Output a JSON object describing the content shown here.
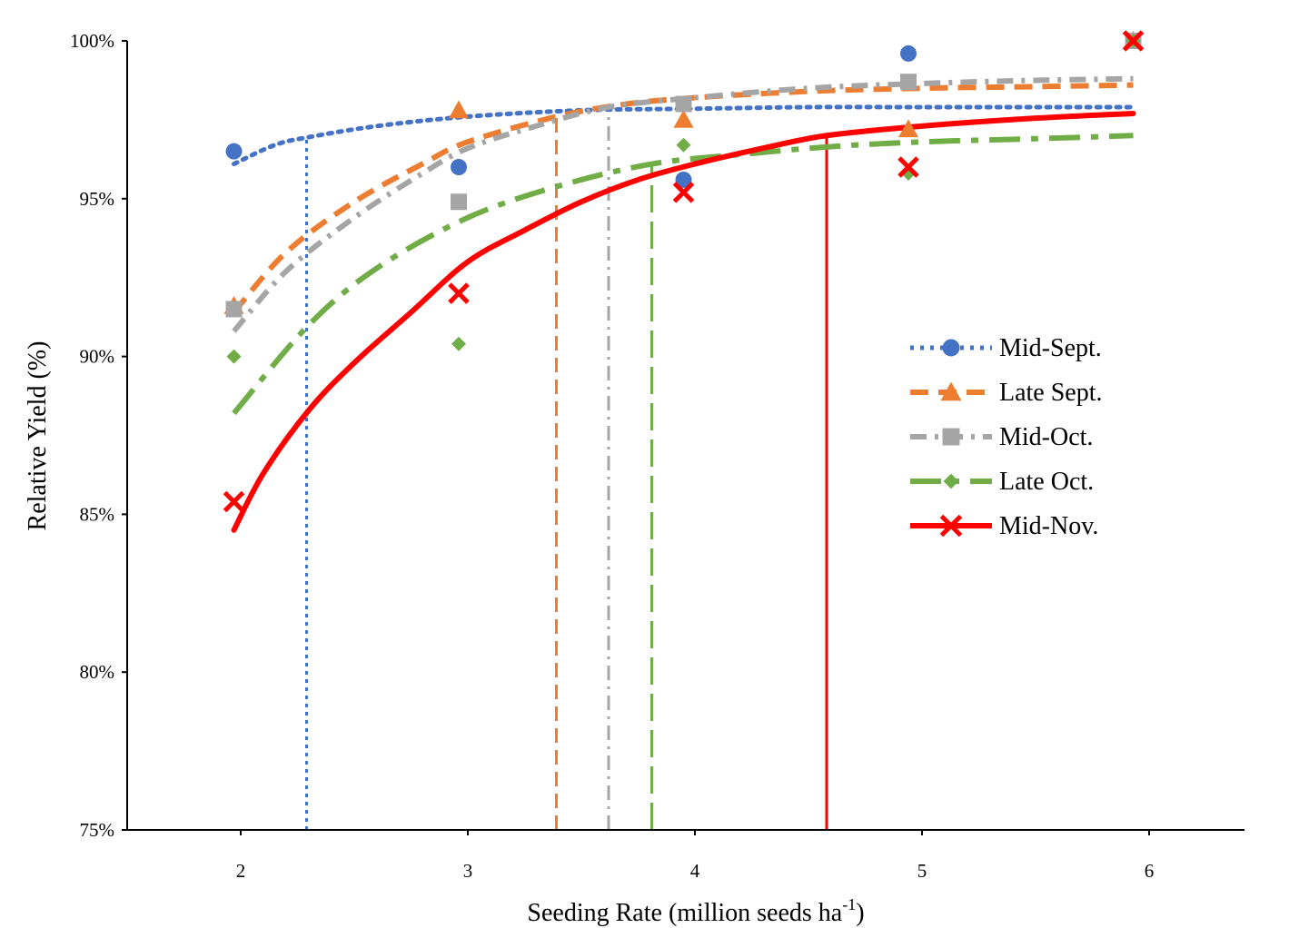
{
  "chart_data": {
    "type": "scatter",
    "title": "",
    "xlabel": "Seeding Rate (million seeds ha",
    "xlabel_superscript": "-1",
    "xlabel_suffix": ")",
    "ylabel": "Relative Yield (%)",
    "xlim": [
      1.5,
      6.42
    ],
    "ylim": [
      75,
      100
    ],
    "x_ticks": [
      2,
      3,
      4,
      5,
      6
    ],
    "x_tick_labels": [
      "2",
      "3",
      "4",
      "5",
      "6"
    ],
    "y_ticks": [
      75,
      80,
      85,
      90,
      95,
      100
    ],
    "y_tick_labels": [
      "75%",
      "80%",
      "85%",
      "90%",
      "95%",
      "100%"
    ],
    "grid": false,
    "legend_position": "right",
    "series": [
      {
        "name": "Mid-Sept.",
        "color": "#4472C4",
        "marker": "circle",
        "line_style": "dotted",
        "x": [
          1.97,
          2.96,
          3.95,
          4.94,
          5.93
        ],
        "values": [
          96.5,
          96.0,
          95.6,
          99.6,
          100.0
        ],
        "trend": [
          [
            1.97,
            96.1
          ],
          [
            2.15,
            96.7
          ],
          [
            2.3,
            96.95
          ],
          [
            2.6,
            97.3
          ],
          [
            3.0,
            97.6
          ],
          [
            3.5,
            97.8
          ],
          [
            4.0,
            97.85
          ],
          [
            4.5,
            97.9
          ],
          [
            5.0,
            97.9
          ],
          [
            5.5,
            97.9
          ],
          [
            5.93,
            97.9
          ]
        ],
        "critical_rate": 2.29
      },
      {
        "name": "Late Sept.",
        "color": "#ED7D31",
        "marker": "triangle",
        "line_style": "dashed",
        "x": [
          1.97,
          2.96,
          3.95,
          4.94,
          5.93
        ],
        "values": [
          91.6,
          97.8,
          97.5,
          97.2,
          100.0
        ],
        "trend": [
          [
            1.97,
            91.4
          ],
          [
            2.2,
            93.3
          ],
          [
            2.5,
            94.9
          ],
          [
            2.8,
            96.1
          ],
          [
            3.0,
            96.8
          ],
          [
            3.39,
            97.6
          ],
          [
            3.7,
            98.0
          ],
          [
            4.0,
            98.2
          ],
          [
            4.5,
            98.4
          ],
          [
            5.0,
            98.5
          ],
          [
            5.5,
            98.55
          ],
          [
            5.93,
            98.6
          ]
        ],
        "critical_rate": 3.39
      },
      {
        "name": "Mid-Oct.",
        "color": "#A5A5A5",
        "marker": "square",
        "line_style": "dash-dot",
        "x": [
          1.97,
          2.96,
          3.95,
          4.94,
          5.93
        ],
        "values": [
          91.5,
          94.9,
          98.0,
          98.7,
          100.0
        ],
        "trend": [
          [
            1.97,
            90.8
          ],
          [
            2.2,
            92.7
          ],
          [
            2.5,
            94.4
          ],
          [
            2.8,
            95.8
          ],
          [
            3.0,
            96.6
          ],
          [
            3.3,
            97.3
          ],
          [
            3.62,
            97.9
          ],
          [
            4.0,
            98.2
          ],
          [
            4.5,
            98.5
          ],
          [
            5.0,
            98.65
          ],
          [
            5.5,
            98.75
          ],
          [
            5.93,
            98.8
          ]
        ],
        "critical_rate": 3.62
      },
      {
        "name": "Late Oct.",
        "color": "#70AD47",
        "marker": "diamond",
        "line_style": "long-dash",
        "x": [
          1.97,
          2.96,
          3.95,
          4.94,
          5.93
        ],
        "values": [
          90.0,
          90.4,
          96.7,
          95.8,
          100.0
        ],
        "trend": [
          [
            1.97,
            88.2
          ],
          [
            2.3,
            91.0
          ],
          [
            2.6,
            92.8
          ],
          [
            3.0,
            94.4
          ],
          [
            3.4,
            95.4
          ],
          [
            3.81,
            96.1
          ],
          [
            4.2,
            96.4
          ],
          [
            4.6,
            96.65
          ],
          [
            5.0,
            96.8
          ],
          [
            5.5,
            96.9
          ],
          [
            5.93,
            97.0
          ]
        ],
        "critical_rate": 3.81
      },
      {
        "name": "Mid-Nov.",
        "color": "#FF0000",
        "marker": "x",
        "line_style": "solid",
        "x": [
          1.97,
          2.96,
          3.95,
          4.94,
          5.93
        ],
        "values": [
          85.4,
          92.0,
          95.2,
          96.0,
          100.0
        ],
        "trend": [
          [
            1.97,
            84.5
          ],
          [
            2.1,
            86.3
          ],
          [
            2.3,
            88.3
          ],
          [
            2.5,
            89.8
          ],
          [
            2.75,
            91.4
          ],
          [
            3.0,
            93.0
          ],
          [
            3.25,
            94.0
          ],
          [
            3.5,
            94.9
          ],
          [
            3.75,
            95.6
          ],
          [
            4.0,
            96.1
          ],
          [
            4.3,
            96.6
          ],
          [
            4.58,
            97.0
          ],
          [
            5.0,
            97.3
          ],
          [
            5.5,
            97.55
          ],
          [
            5.93,
            97.7
          ]
        ],
        "critical_rate": 4.58
      }
    ]
  }
}
